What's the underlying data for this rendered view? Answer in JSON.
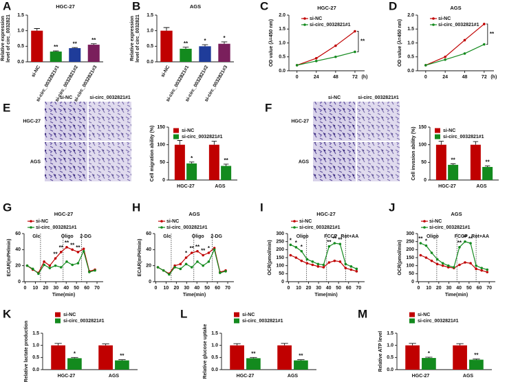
{
  "chart_data": [
    {
      "panel": "A",
      "type": "bar",
      "title": "HGC-27",
      "ylabel": [
        "Relative expression",
        "level of circ_0032821"
      ],
      "categories": [
        "si-NC",
        "si-circ_0032821#1",
        "si-circ_0032821#2",
        "si-circ_0032821#3"
      ],
      "values": [
        1.0,
        0.33,
        0.44,
        0.55
      ],
      "errors": [
        0.07,
        0.02,
        0.02,
        0.03
      ],
      "significance": [
        null,
        "**",
        "**",
        "**"
      ],
      "colors": [
        "#c00000",
        "#138a1e",
        "#1f3c9a",
        "#7a1f5c"
      ],
      "ylim": [
        0,
        1.5
      ],
      "yticks": [
        {
          "value": 0,
          "label": "0.0"
        },
        0.5,
        {
          "value": 1,
          "label": "1.0"
        },
        1.5
      ]
    },
    {
      "panel": "B",
      "type": "bar",
      "title": "AGS",
      "ylabel": [
        "Relative expression",
        "level of circ_0032821"
      ],
      "categories": [
        "si-NC",
        "si-circ_0032821#1",
        "si-circ_0032821#2",
        "si-circ_0032821#3"
      ],
      "values": [
        1.0,
        0.42,
        0.5,
        0.58
      ],
      "errors": [
        0.1,
        0.05,
        0.05,
        0.06
      ],
      "significance": [
        null,
        "**",
        "*",
        "*"
      ],
      "colors": [
        "#c00000",
        "#138a1e",
        "#1f3c9a",
        "#7a1f5c"
      ],
      "ylim": [
        0,
        1.5
      ],
      "yticks": [
        {
          "value": 0,
          "label": "0.0"
        },
        0.5,
        {
          "value": 1,
          "label": "1.0"
        },
        1.5
      ]
    },
    {
      "panel": "C",
      "type": "line",
      "title": "HGC-27",
      "ylabel": [
        "OD value (λ=450 nm)"
      ],
      "xlabel": "(h)",
      "x": [
        0,
        24,
        48,
        72
      ],
      "xlim": [
        -10,
        84
      ],
      "xticks": [
        0,
        24,
        48,
        72
      ],
      "series": [
        {
          "name": "si-NC",
          "color": "#c00000",
          "values": [
            0.2,
            0.45,
            0.9,
            1.42
          ]
        },
        {
          "name": "si-circ_0032821#1",
          "color": "#138a1e",
          "values": [
            0.2,
            0.35,
            0.5,
            0.68
          ]
        }
      ],
      "bracket_label": "**",
      "ylim": [
        0,
        2
      ],
      "yticks": [
        {
          "value": 0,
          "label": "0.0"
        },
        0.5,
        {
          "value": 1,
          "label": "1.0"
        },
        1.5,
        {
          "value": 2,
          "label": "2.0"
        }
      ]
    },
    {
      "panel": "D",
      "type": "line",
      "title": "AGS",
      "ylabel": [
        "OD value (λ=450 nm)"
      ],
      "xlabel": "(h)",
      "x": [
        0,
        24,
        48,
        72
      ],
      "xlim": [
        -10,
        84
      ],
      "xticks": [
        0,
        24,
        48,
        72
      ],
      "series": [
        {
          "name": "si-NC",
          "color": "#c00000",
          "values": [
            0.2,
            0.5,
            1.1,
            1.68
          ]
        },
        {
          "name": "si-circ_0032821#1",
          "color": "#138a1e",
          "values": [
            0.2,
            0.4,
            0.62,
            0.95
          ]
        }
      ],
      "bracket_label": "**",
      "ylim": [
        0,
        2
      ],
      "yticks": [
        {
          "value": 0,
          "label": "0.0"
        },
        0.5,
        {
          "value": 1,
          "label": "1.0"
        },
        1.5,
        {
          "value": 2,
          "label": "2.0"
        }
      ]
    },
    {
      "panel": "E",
      "type": "bar",
      "ylabel": [
        "Cell migration ability (%)"
      ],
      "image_columns": [
        "si-NC",
        "si-circ_0032821#1"
      ],
      "image_rows": [
        "HGC-27",
        "AGS"
      ],
      "categories": [
        "HGC-27",
        "AGS"
      ],
      "series": [
        {
          "name": "si-NC",
          "color": "#c00000",
          "values": [
            100,
            100
          ],
          "errors": [
            12,
            10
          ],
          "significance": [
            null,
            null
          ]
        },
        {
          "name": "si-circ_0032821#1",
          "color": "#138a1e",
          "values": [
            47,
            40
          ],
          "errors": [
            4,
            5
          ],
          "significance": [
            "*",
            "**"
          ]
        }
      ],
      "ylim": [
        0,
        150
      ],
      "yticks": [
        0,
        50,
        100,
        150
      ]
    },
    {
      "panel": "F",
      "type": "bar",
      "ylabel": [
        "Cell invasion ability (%)"
      ],
      "image_columns": [
        "si-NC",
        "si-circ_0032821#1"
      ],
      "image_rows": [
        "HGC-27",
        "AGS"
      ],
      "categories": [
        "HGC-27",
        "AGS"
      ],
      "series": [
        {
          "name": "si-NC",
          "color": "#c00000",
          "values": [
            100,
            100
          ],
          "errors": [
            10,
            9
          ],
          "significance": [
            null,
            null
          ]
        },
        {
          "name": "si-circ_0032821#1",
          "color": "#138a1e",
          "values": [
            43,
            37
          ],
          "errors": [
            3,
            3
          ],
          "significance": [
            "**",
            "**"
          ]
        }
      ],
      "ylim": [
        0,
        150
      ],
      "yticks": [
        0,
        50,
        100,
        150
      ]
    },
    {
      "panel": "G",
      "type": "line",
      "title": "HGC-27",
      "ylabel": [
        "ECAR(mPH/min)"
      ],
      "xlabel": "Time(min)",
      "x": [
        2,
        7.5,
        13,
        18.5,
        24,
        29.5,
        35,
        40.5,
        46,
        51.5,
        57,
        62.5,
        68
      ],
      "xlim": [
        -1,
        76
      ],
      "xticks": [
        0,
        10,
        20,
        30,
        40,
        50,
        60,
        70
      ],
      "events": [
        {
          "x": 15,
          "label": "Glc"
        },
        {
          "x": 37,
          "label": "Oligo"
        },
        {
          "x": 55,
          "label": "2-DG"
        }
      ],
      "series": [
        {
          "name": "si-NC",
          "color": "#c00000",
          "values": [
            20,
            15,
            11,
            25,
            20,
            29,
            37,
            43,
            40,
            37,
            41,
            13,
            15
          ]
        },
        {
          "name": "si-circ_0032821#1",
          "color": "#138a1e",
          "values": [
            20,
            16,
            10,
            21,
            17,
            20,
            18,
            25,
            21,
            23,
            38,
            12,
            14
          ],
          "significance": [
            null,
            null,
            null,
            null,
            null,
            "**",
            "**",
            "**",
            "**",
            "**",
            null,
            null,
            null
          ]
        }
      ],
      "ylim": [
        0,
        60
      ],
      "yticks": [
        0,
        20,
        40,
        60
      ]
    },
    {
      "panel": "H",
      "type": "line",
      "title": "AGS",
      "ylabel": [
        "ECAR(mPH/min)"
      ],
      "xlabel": "Time(min)",
      "x": [
        2,
        7.5,
        13,
        18.5,
        24,
        29.5,
        35,
        40.5,
        46,
        51.5,
        57,
        62.5,
        68
      ],
      "xlim": [
        -1,
        76
      ],
      "xticks": [
        0,
        10,
        20,
        30,
        40,
        50,
        60,
        70
      ],
      "events": [
        {
          "x": 15,
          "label": "Glc"
        },
        {
          "x": 37,
          "label": "Oligo"
        },
        {
          "x": 55,
          "label": "2-DG"
        }
      ],
      "series": [
        {
          "name": "si-NC",
          "color": "#c00000",
          "values": [
            18,
            14,
            10,
            20,
            22,
            30,
            36,
            38,
            33,
            36,
            42,
            12,
            14
          ]
        },
        {
          "name": "si-circ_0032821#1",
          "color": "#138a1e",
          "values": [
            18,
            14,
            9,
            18,
            16,
            22,
            18,
            25,
            20,
            25,
            40,
            11,
            13
          ],
          "significance": [
            null,
            null,
            null,
            null,
            null,
            "*",
            "**",
            "**",
            "**",
            "*",
            null,
            null,
            null
          ]
        }
      ],
      "ylim": [
        0,
        60
      ],
      "yticks": [
        0,
        20,
        40,
        60
      ]
    },
    {
      "panel": "I",
      "type": "line",
      "title": "HGC-27",
      "ylabel": [
        "OCR(pmol/min)"
      ],
      "xlabel": "Time(min)",
      "x": [
        2,
        7.5,
        13,
        18.5,
        24,
        29.5,
        35,
        40.5,
        46,
        51.5,
        57,
        62.5,
        68
      ],
      "xlim": [
        -1,
        76
      ],
      "xticks": [
        0,
        10,
        20,
        30,
        40,
        50,
        60,
        70
      ],
      "events": [
        {
          "x": 18,
          "label": "Oligo"
        },
        {
          "x": 38,
          "label": "FCCP"
        },
        {
          "x": 57,
          "label": "Rot+AA"
        }
      ],
      "series": [
        {
          "name": "si-NC",
          "color": "#c00000",
          "values": [
            165,
            150,
            130,
            115,
            105,
            95,
            90,
            120,
            130,
            125,
            85,
            75,
            65
          ]
        },
        {
          "name": "si-circ_0032821#1",
          "color": "#138a1e",
          "values": [
            230,
            215,
            190,
            140,
            125,
            110,
            105,
            220,
            240,
            235,
            110,
            95,
            80
          ],
          "significance": [
            "*",
            "*",
            "*",
            null,
            null,
            null,
            null,
            "**",
            "**",
            "**",
            null,
            null,
            null
          ]
        }
      ],
      "ylim": [
        0,
        300
      ],
      "yticks": [
        0,
        50,
        100,
        150,
        200,
        250,
        300
      ]
    },
    {
      "panel": "J",
      "type": "line",
      "title": "AGS",
      "ylabel": [
        "OCR(pmol/min)"
      ],
      "xlabel": "Time(min)",
      "x": [
        2,
        7.5,
        13,
        18.5,
        24,
        29.5,
        35,
        40.5,
        46,
        51.5,
        57,
        62.5,
        68
      ],
      "xlim": [
        -1,
        76
      ],
      "xticks": [
        0,
        10,
        20,
        30,
        40,
        50,
        60,
        70
      ],
      "events": [
        {
          "x": 18,
          "label": "Oligo"
        },
        {
          "x": 38,
          "label": "FCCP"
        },
        {
          "x": 57,
          "label": "Rot+AA"
        }
      ],
      "series": [
        {
          "name": "si-NC",
          "color": "#c00000",
          "values": [
            165,
            150,
            130,
            110,
            100,
            90,
            85,
            105,
            120,
            115,
            80,
            70,
            60
          ]
        },
        {
          "name": "si-circ_0032821#1",
          "color": "#138a1e",
          "values": [
            240,
            225,
            180,
            140,
            115,
            100,
            90,
            215,
            250,
            240,
            100,
            85,
            75
          ],
          "significance": [
            "**",
            "*",
            null,
            null,
            null,
            null,
            null,
            "**",
            "**",
            "**",
            null,
            null,
            null
          ]
        }
      ],
      "ylim": [
        0,
        300
      ],
      "yticks": [
        0,
        50,
        100,
        150,
        200,
        250,
        300
      ]
    },
    {
      "panel": "K",
      "type": "bar",
      "ylabel": [
        "Relative lactate production"
      ],
      "categories": [
        "HGC-27",
        "AGS"
      ],
      "series": [
        {
          "name": "si-NC",
          "color": "#c00000",
          "values": [
            1.0,
            1.0
          ],
          "errors": [
            0.08,
            0.06
          ],
          "significance": [
            null,
            null
          ]
        },
        {
          "name": "si-circ_0032821#1",
          "color": "#138a1e",
          "values": [
            0.47,
            0.38
          ],
          "errors": [
            0.03,
            0.03
          ],
          "significance": [
            "*",
            "**"
          ]
        }
      ],
      "ylim": [
        0,
        1.5
      ],
      "yticks": [
        {
          "value": 0,
          "label": "0.0"
        },
        0.5,
        {
          "value": 1,
          "label": "1.0"
        },
        1.5
      ]
    },
    {
      "panel": "L",
      "type": "bar",
      "ylabel": [
        "Relative glucose uptake"
      ],
      "categories": [
        "HGC-27",
        "AGS"
      ],
      "series": [
        {
          "name": "si-NC",
          "color": "#c00000",
          "values": [
            1.0,
            1.0
          ],
          "errors": [
            0.07,
            0.08
          ],
          "significance": [
            null,
            null
          ]
        },
        {
          "name": "si-circ_0032821#1",
          "color": "#138a1e",
          "values": [
            0.47,
            0.38
          ],
          "errors": [
            0.03,
            0.03
          ],
          "significance": [
            "**",
            "**"
          ]
        }
      ],
      "ylim": [
        0,
        1.5
      ],
      "yticks": [
        {
          "value": 0,
          "label": "0.0"
        },
        0.5,
        {
          "value": 1,
          "label": "1.0"
        },
        1.5
      ]
    },
    {
      "panel": "M",
      "type": "bar",
      "ylabel": [
        "Relative ATP level"
      ],
      "categories": [
        "HGC-27",
        "AGS"
      ],
      "series": [
        {
          "name": "si-NC",
          "color": "#c00000",
          "values": [
            1.0,
            1.0
          ],
          "errors": [
            0.08,
            0.07
          ],
          "significance": [
            null,
            null
          ]
        },
        {
          "name": "si-circ_0032821#1",
          "color": "#138a1e",
          "values": [
            0.48,
            0.41
          ],
          "errors": [
            0.03,
            0.03
          ],
          "significance": [
            "*",
            "**"
          ]
        }
      ],
      "ylim": [
        0,
        1.5
      ],
      "yticks": [
        {
          "value": 0,
          "label": "0.0"
        },
        0.5,
        {
          "value": 1,
          "label": "1.0"
        },
        1.5
      ]
    }
  ]
}
